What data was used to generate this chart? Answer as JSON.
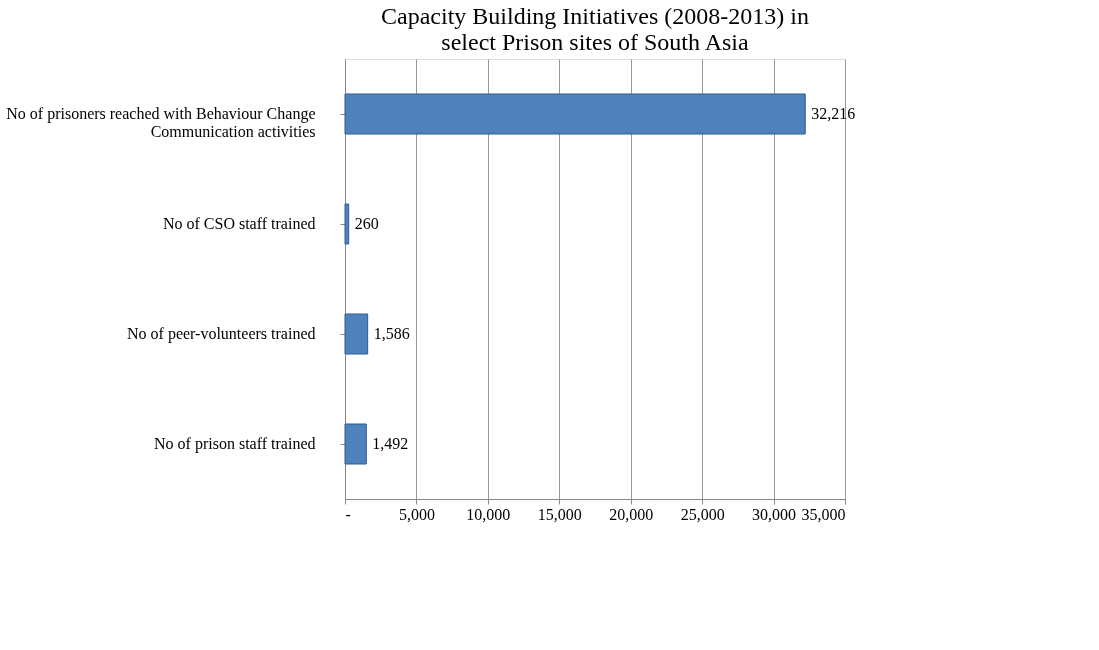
{
  "chart_data": {
    "type": "bar",
    "orientation": "horizontal",
    "title": "Capacity Building Initiatives (2008-2013) in select Prison sites of South Asia",
    "categories": [
      "No of prisoners reached with Behaviour Change Communication activities",
      "No of CSO staff trained",
      "No of peer-volunteers trained",
      "No of prison staff trained"
    ],
    "values": [
      32216,
      260,
      1586,
      1492
    ],
    "value_labels": [
      "32,216",
      "260",
      "1,586",
      "1,492"
    ],
    "color": "#4f81bd",
    "xlim": [
      0,
      35000
    ],
    "xticks": [
      {
        "value": 0,
        "label": "-"
      },
      {
        "value": 5000,
        "label": "5,000"
      },
      {
        "value": 10000,
        "label": "10,000"
      },
      {
        "value": 15000,
        "label": "15,000"
      },
      {
        "value": 20000,
        "label": "20,000"
      },
      {
        "value": 25000,
        "label": "25,000"
      },
      {
        "value": 30000,
        "label": "30,000"
      },
      {
        "value": 35000,
        "label": "35,000"
      }
    ],
    "grid": "x"
  }
}
